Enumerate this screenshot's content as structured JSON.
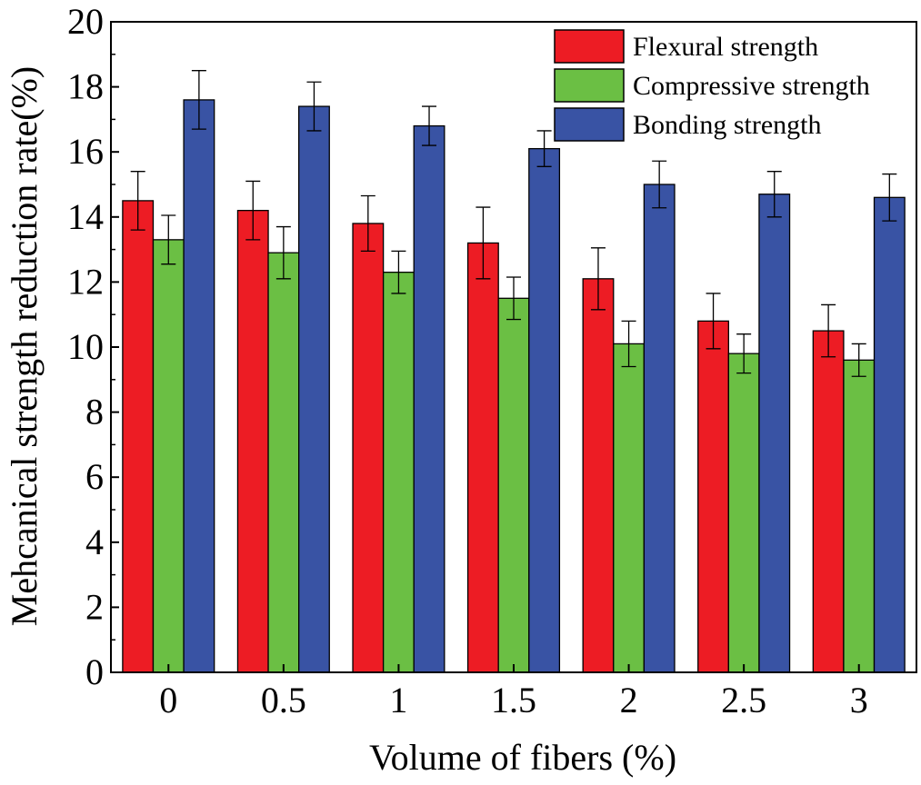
{
  "chart_data": {
    "type": "bar",
    "title": "",
    "xlabel": "Volume of fibers (%)",
    "ylabel": "Mehcanical strength reduction rate(%)",
    "ylim": [
      0,
      20
    ],
    "yticks": [
      0,
      2,
      4,
      6,
      8,
      10,
      12,
      14,
      16,
      18,
      20
    ],
    "categories": [
      "0",
      "0.5",
      "1",
      "1.5",
      "2",
      "2.5",
      "3"
    ],
    "series": [
      {
        "name": "Flexural strength",
        "color": "#ED1C24",
        "values": [
          14.5,
          14.2,
          13.8,
          13.2,
          12.1,
          10.8,
          10.5
        ],
        "errors": [
          0.9,
          0.9,
          0.85,
          1.1,
          0.95,
          0.85,
          0.8
        ]
      },
      {
        "name": "Compressive strength",
        "color": "#6BBF44",
        "values": [
          13.3,
          12.9,
          12.3,
          11.5,
          10.1,
          9.8,
          9.6
        ],
        "errors": [
          0.75,
          0.8,
          0.65,
          0.65,
          0.7,
          0.6,
          0.5
        ]
      },
      {
        "name": "Bonding strength",
        "color": "#3953A4",
        "values": [
          17.6,
          17.4,
          16.8,
          16.1,
          15.0,
          14.7,
          14.6
        ],
        "errors": [
          0.9,
          0.75,
          0.6,
          0.55,
          0.72,
          0.7,
          0.72
        ]
      }
    ],
    "legend_position": "top-right",
    "grid": false,
    "error_bars": true
  }
}
